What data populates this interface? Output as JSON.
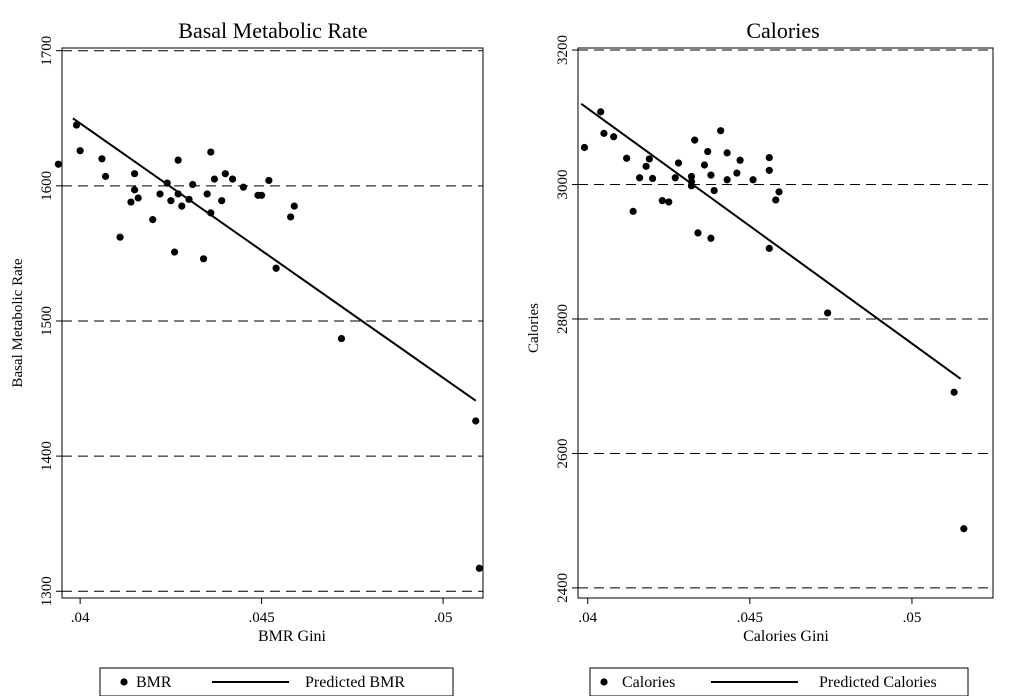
{
  "chart_data": [
    {
      "type": "scatter",
      "title": "Basal Metabolic Rate",
      "xlabel": "BMR Gini",
      "ylabel": "Basal Metabolic Rate",
      "xlim": [
        0.0395,
        0.0511
      ],
      "ylim": [
        1295,
        1702
      ],
      "x_ticks": [
        {
          "v": 0.04,
          "label": ".04"
        },
        {
          "v": 0.045,
          "label": ".045"
        },
        {
          "v": 0.05,
          "label": ".05"
        }
      ],
      "y_ticks": [
        {
          "v": 1300,
          "label": "1300"
        },
        {
          "v": 1400,
          "label": "1400"
        },
        {
          "v": 1500,
          "label": "1500"
        },
        {
          "v": 1600,
          "label": "1600"
        },
        {
          "v": 1700,
          "label": "1700"
        }
      ],
      "grid": "horizontal dashed",
      "legend_position": "bottom",
      "series": [
        {
          "name": "BMR",
          "kind": "scatter",
          "color": "#000000",
          "points": [
            [
              0.0394,
              1616
            ],
            [
              0.0399,
              1645
            ],
            [
              0.04,
              1626
            ],
            [
              0.0406,
              1620
            ],
            [
              0.0407,
              1607
            ],
            [
              0.0411,
              1562
            ],
            [
              0.0414,
              1588
            ],
            [
              0.0415,
              1597
            ],
            [
              0.0415,
              1609
            ],
            [
              0.0416,
              1591
            ],
            [
              0.042,
              1575
            ],
            [
              0.0422,
              1594
            ],
            [
              0.0424,
              1602
            ],
            [
              0.0425,
              1589
            ],
            [
              0.0426,
              1551
            ],
            [
              0.0427,
              1619
            ],
            [
              0.0427,
              1594
            ],
            [
              0.0428,
              1585
            ],
            [
              0.043,
              1590
            ],
            [
              0.0431,
              1601
            ],
            [
              0.0434,
              1546
            ],
            [
              0.0435,
              1594
            ],
            [
              0.0436,
              1580
            ],
            [
              0.0436,
              1625
            ],
            [
              0.0437,
              1605
            ],
            [
              0.0439,
              1589
            ],
            [
              0.044,
              1609
            ],
            [
              0.0442,
              1605
            ],
            [
              0.0445,
              1599
            ],
            [
              0.0449,
              1593
            ],
            [
              0.045,
              1593
            ],
            [
              0.0452,
              1604
            ],
            [
              0.0454,
              1539
            ],
            [
              0.0458,
              1577
            ],
            [
              0.0459,
              1585
            ],
            [
              0.0472,
              1487
            ],
            [
              0.0509,
              1426
            ],
            [
              0.051,
              1317
            ]
          ]
        },
        {
          "name": "Predicted BMR",
          "kind": "line",
          "color": "#000000",
          "points": [
            [
              0.0398,
              1650
            ],
            [
              0.0509,
              1441
            ]
          ]
        }
      ]
    },
    {
      "type": "scatter",
      "title": "Calories",
      "xlabel": "Calories Gini",
      "ylabel": "Calories",
      "xlim": [
        0.0397,
        0.0525
      ],
      "ylim": [
        2385,
        3203
      ],
      "x_ticks": [
        {
          "v": 0.04,
          "label": ".04"
        },
        {
          "v": 0.045,
          "label": ".045"
        },
        {
          "v": 0.05,
          "label": ".05"
        }
      ],
      "y_ticks": [
        {
          "v": 2400,
          "label": "2400"
        },
        {
          "v": 2600,
          "label": "2600"
        },
        {
          "v": 2800,
          "label": "2800"
        },
        {
          "v": 3000,
          "label": "3000"
        },
        {
          "v": 3200,
          "label": "3200"
        }
      ],
      "grid": "horizontal dashed",
      "legend_position": "bottom",
      "series": [
        {
          "name": "Calories",
          "kind": "scatter",
          "color": "#000000",
          "points": [
            [
              0.0399,
              3055
            ],
            [
              0.0404,
              3108
            ],
            [
              0.0405,
              3076
            ],
            [
              0.0408,
              3071
            ],
            [
              0.0412,
              3039
            ],
            [
              0.0414,
              2960
            ],
            [
              0.0416,
              3010
            ],
            [
              0.0418,
              3027
            ],
            [
              0.0419,
              3038
            ],
            [
              0.042,
              3009
            ],
            [
              0.0423,
              2976
            ],
            [
              0.0425,
              2974
            ],
            [
              0.0427,
              3010
            ],
            [
              0.0428,
              3032
            ],
            [
              0.0432,
              3012
            ],
            [
              0.0432,
              3004
            ],
            [
              0.0432,
              2998
            ],
            [
              0.0433,
              3066
            ],
            [
              0.0434,
              2928
            ],
            [
              0.0436,
              3029
            ],
            [
              0.0437,
              3049
            ],
            [
              0.0438,
              3014
            ],
            [
              0.0438,
              2920
            ],
            [
              0.0439,
              2991
            ],
            [
              0.0441,
              3080
            ],
            [
              0.0443,
              3047
            ],
            [
              0.0443,
              3007
            ],
            [
              0.0446,
              3017
            ],
            [
              0.0447,
              3036
            ],
            [
              0.0451,
              3007
            ],
            [
              0.0456,
              3040
            ],
            [
              0.0456,
              3021
            ],
            [
              0.0456,
              2905
            ],
            [
              0.0458,
              2977
            ],
            [
              0.0459,
              2989
            ],
            [
              0.0474,
              2809
            ],
            [
              0.0513,
              2691
            ],
            [
              0.0516,
              2488
            ]
          ]
        },
        {
          "name": "Predicted Calories",
          "kind": "line",
          "color": "#000000",
          "points": [
            [
              0.0398,
              3120
            ],
            [
              0.0515,
              2711
            ]
          ]
        }
      ]
    }
  ]
}
